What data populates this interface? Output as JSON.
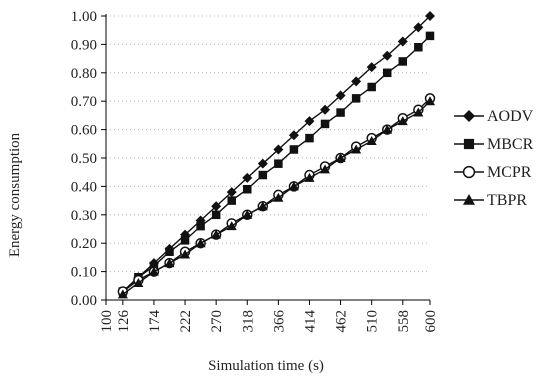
{
  "chart_data": {
    "type": "line",
    "xlabel": "Simulation time (s)",
    "ylabel": "Energy consumption",
    "ylim": [
      0,
      1
    ],
    "yticks": [
      "0.00",
      "0.10",
      "0.20",
      "0.30",
      "0.40",
      "0.50",
      "0.60",
      "0.70",
      "0.80",
      "0.90",
      "1.00"
    ],
    "xticks": [
      "100",
      "126",
      "174",
      "222",
      "270",
      "318",
      "366",
      "414",
      "462",
      "510",
      "558",
      "600"
    ],
    "x": [
      126,
      150,
      174,
      198,
      222,
      246,
      270,
      294,
      318,
      342,
      366,
      390,
      414,
      438,
      462,
      486,
      510,
      534,
      558,
      582,
      600
    ],
    "grid": "horizontal dotted",
    "legend_position": "right",
    "series": [
      {
        "name": "AODV",
        "marker": "diamond",
        "values": [
          0.03,
          0.08,
          0.13,
          0.18,
          0.23,
          0.28,
          0.33,
          0.38,
          0.43,
          0.48,
          0.53,
          0.58,
          0.63,
          0.67,
          0.72,
          0.77,
          0.82,
          0.86,
          0.91,
          0.96,
          1.0
        ]
      },
      {
        "name": "MBCR",
        "marker": "square",
        "values": [
          0.03,
          0.08,
          0.12,
          0.17,
          0.21,
          0.26,
          0.3,
          0.35,
          0.39,
          0.44,
          0.48,
          0.53,
          0.57,
          0.62,
          0.66,
          0.71,
          0.75,
          0.8,
          0.84,
          0.89,
          0.93
        ]
      },
      {
        "name": "MCPR",
        "marker": "circle",
        "values": [
          0.03,
          0.07,
          0.1,
          0.13,
          0.17,
          0.2,
          0.23,
          0.27,
          0.3,
          0.33,
          0.37,
          0.4,
          0.44,
          0.47,
          0.5,
          0.54,
          0.57,
          0.6,
          0.64,
          0.67,
          0.71
        ]
      },
      {
        "name": "TBPR",
        "marker": "triangle",
        "values": [
          0.02,
          0.06,
          0.1,
          0.13,
          0.16,
          0.2,
          0.23,
          0.26,
          0.3,
          0.33,
          0.36,
          0.4,
          0.43,
          0.46,
          0.5,
          0.53,
          0.56,
          0.6,
          0.63,
          0.66,
          0.7
        ]
      }
    ]
  }
}
